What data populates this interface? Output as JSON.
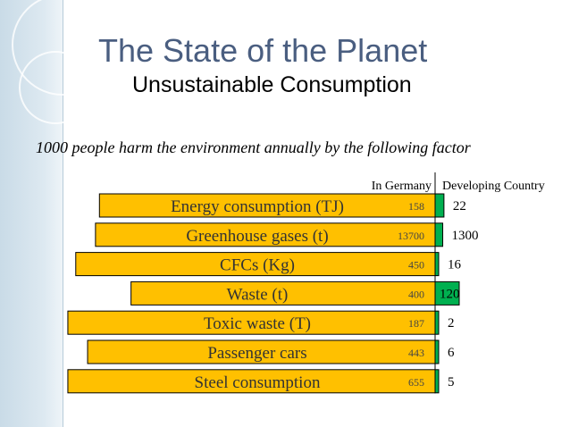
{
  "slide": {
    "title": "The State of the Planet",
    "subtitle": "Unsustainable Consumption",
    "caption": "1000 people harm the environment annually by the following factor"
  },
  "colors": {
    "germany_bar": "#FFC000",
    "developing_bar": "#00B050",
    "title_color": "#4A5E80",
    "accent_band": "#C9DBE7"
  },
  "chart_data": {
    "type": "bar",
    "orientation": "horizontal",
    "layout": "back-to-back",
    "title": "",
    "categories": [
      "Energy consumption (TJ)",
      "Greenhouse gases (t)",
      "CFCs (Kg)",
      "Waste (t)",
      "Toxic waste (T)",
      "Passenger cars",
      "Steel consumption"
    ],
    "series": [
      {
        "name": "In Germany",
        "values": [
          158,
          13700,
          450,
          400,
          187,
          443,
          655
        ]
      },
      {
        "name": "Developing Country",
        "values": [
          22,
          1300,
          16,
          120,
          2,
          6,
          5
        ]
      }
    ],
    "bar_extent_relative_to_germany": [
      0.85,
      0.86,
      0.91,
      0.77,
      0.93,
      0.88,
      0.93
    ],
    "developing_extent_relative_to_germany": [
      0.11,
      0.095,
      0.03,
      0.3,
      0.01,
      0.014,
      0.008
    ],
    "legend": "above bars, centered on axis",
    "grid": false
  }
}
